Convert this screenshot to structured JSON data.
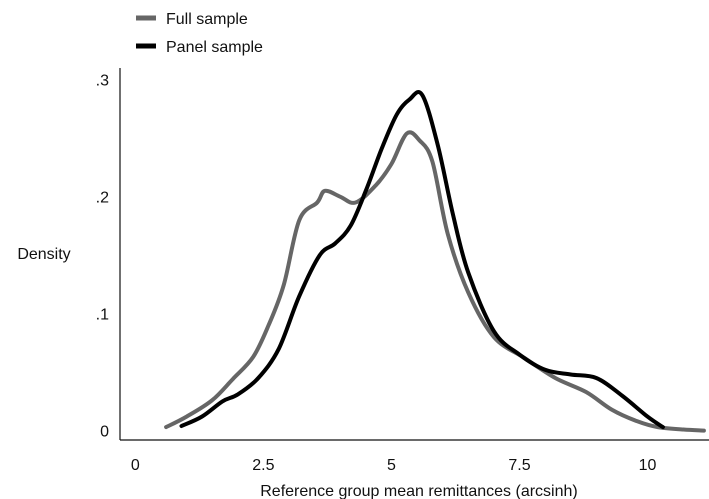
{
  "chart_data": {
    "type": "line",
    "title": "",
    "xlabel": "Reference group mean remittances (arcsinh)",
    "ylabel": "Density",
    "xlim": [
      -0.3,
      11.2
    ],
    "ylim": [
      -0.008,
      0.31
    ],
    "x_ticks": [
      0,
      2.5,
      5,
      7.5,
      10
    ],
    "x_tick_labels": [
      "0",
      "2.5",
      "5",
      "7.5",
      "10"
    ],
    "y_ticks": [
      0,
      0.1,
      0.2,
      0.3
    ],
    "y_tick_labels": [
      "0",
      ".1",
      ".2",
      ".3"
    ],
    "grid": false,
    "legend_position": "top-left",
    "series": [
      {
        "name": "Full sample",
        "color": "#666666",
        "x": [
          0.6,
          1.0,
          1.5,
          1.9,
          2.3,
          2.6,
          2.9,
          3.2,
          3.55,
          3.7,
          4.0,
          4.3,
          4.7,
          5.0,
          5.3,
          5.55,
          5.8,
          6.1,
          6.5,
          7.0,
          7.6,
          8.2,
          8.8,
          9.3,
          9.8,
          10.2,
          10.7,
          11.1
        ],
        "y": [
          0.003,
          0.012,
          0.026,
          0.044,
          0.063,
          0.09,
          0.125,
          0.18,
          0.195,
          0.205,
          0.2,
          0.195,
          0.21,
          0.228,
          0.254,
          0.248,
          0.23,
          0.168,
          0.118,
          0.08,
          0.062,
          0.045,
          0.033,
          0.018,
          0.008,
          0.003,
          0.001,
          0.0
        ]
      },
      {
        "name": "Panel sample",
        "color": "#000000",
        "x": [
          0.9,
          1.3,
          1.7,
          2.0,
          2.4,
          2.8,
          3.2,
          3.6,
          3.9,
          4.2,
          4.5,
          4.8,
          5.1,
          5.35,
          5.6,
          5.9,
          6.2,
          6.5,
          7.0,
          7.5,
          8.0,
          8.5,
          9.0,
          9.5,
          10.0,
          10.3
        ],
        "y": [
          0.004,
          0.012,
          0.025,
          0.031,
          0.045,
          0.07,
          0.115,
          0.15,
          0.16,
          0.175,
          0.205,
          0.24,
          0.27,
          0.283,
          0.287,
          0.245,
          0.185,
          0.135,
          0.085,
          0.065,
          0.052,
          0.048,
          0.045,
          0.03,
          0.012,
          0.003
        ]
      }
    ]
  }
}
